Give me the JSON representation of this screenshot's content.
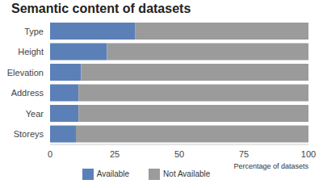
{
  "chart_data": {
    "type": "bar",
    "title": "Semantic content of datasets",
    "orientation": "horizontal",
    "stacked": true,
    "categories": [
      "Type",
      "Height",
      "Elevation",
      "Address",
      "Year",
      "Storeys"
    ],
    "series": [
      {
        "name": "Available",
        "color": "#5b80b8",
        "values": [
          33,
          22,
          12,
          11,
          11,
          10
        ]
      },
      {
        "name": "Not Available",
        "color": "#9b9b9b",
        "values": [
          67,
          78,
          88,
          89,
          89,
          90
        ]
      }
    ],
    "x_label": "Percentage of datasets",
    "xlim": [
      0,
      100
    ],
    "xticks": [
      0,
      25,
      50,
      75,
      100
    ],
    "legend": "bottom"
  }
}
